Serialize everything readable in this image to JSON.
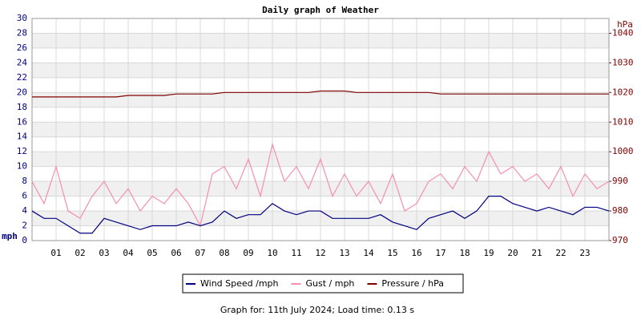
{
  "chart_data": {
    "type": "line",
    "title": "Daily graph of Weather",
    "ylabel": "mph",
    "y2label": "hPa",
    "footer": "Graph for: 11th July 2024; Load time: 0.13 s",
    "x": [
      0,
      0.5,
      1,
      1.5,
      2,
      2.5,
      3,
      3.5,
      4,
      4.5,
      5,
      5.5,
      6,
      6.5,
      7,
      7.5,
      8,
      8.5,
      9,
      9.5,
      10,
      10.5,
      11,
      11.5,
      12,
      12.5,
      13,
      13.5,
      14,
      14.5,
      15,
      15.5,
      16,
      16.5,
      17,
      17.5,
      18,
      18.5,
      19,
      19.5,
      20,
      20.5,
      21,
      21.5,
      22,
      22.5,
      23,
      23.5,
      24
    ],
    "xlim": [
      0,
      24
    ],
    "xticks": [
      {
        "value": 1,
        "label": "01"
      },
      {
        "value": 2,
        "label": "02"
      },
      {
        "value": 3,
        "label": "03"
      },
      {
        "value": 4,
        "label": "04"
      },
      {
        "value": 5,
        "label": "05"
      },
      {
        "value": 6,
        "label": "06"
      },
      {
        "value": 7,
        "label": "07"
      },
      {
        "value": 8,
        "label": "08"
      },
      {
        "value": 9,
        "label": "09"
      },
      10,
      11,
      12,
      13,
      14,
      15,
      16,
      17,
      18,
      19,
      20,
      21,
      22,
      23
    ],
    "ylim": [
      0,
      30
    ],
    "yticks": [
      0,
      2,
      4,
      6,
      8,
      10,
      12,
      14,
      16,
      18,
      20,
      22,
      24,
      26,
      28,
      30
    ],
    "y2lim": [
      970,
      1045
    ],
    "y2ticks": [
      970,
      980,
      990,
      1000,
      1010,
      1020,
      1030,
      1040
    ],
    "grid": true,
    "series": [
      {
        "name": "Wind Speed /mph",
        "color": "#000080",
        "values": [
          4,
          3,
          3,
          2,
          1,
          1,
          3,
          2.5,
          2,
          1.5,
          2,
          2,
          2,
          2.5,
          2,
          2.5,
          4,
          3,
          3.5,
          3.5,
          5,
          4,
          3.5,
          4,
          4,
          3,
          3,
          3,
          3,
          3.5,
          2.5,
          2,
          1.5,
          3,
          3.5,
          4,
          3,
          4,
          6,
          6,
          5,
          4.5,
          4,
          4.5,
          4,
          3.5,
          4.5,
          4.5,
          4
        ]
      },
      {
        "name": "Gust / mph",
        "color": "#f48fb1",
        "values": [
          8,
          5,
          10,
          4,
          3,
          6,
          8,
          5,
          7,
          4,
          6,
          5,
          7,
          5,
          2,
          9,
          10,
          7,
          11,
          6,
          13,
          8,
          10,
          7,
          11,
          6,
          9,
          6,
          8,
          5,
          9,
          4,
          5,
          8,
          9,
          7,
          10,
          8,
          12,
          9,
          10,
          8,
          9,
          7,
          10,
          6,
          9,
          7,
          8
        ]
      },
      {
        "name": "Pressure / hPa",
        "color": "#800000",
        "axis": "y2",
        "values": [
          1018.5,
          1018.5,
          1018.5,
          1018.5,
          1018.5,
          1018.5,
          1018.5,
          1018.5,
          1019,
          1019,
          1019,
          1019,
          1019.5,
          1019.5,
          1019.5,
          1019.5,
          1020,
          1020,
          1020,
          1020,
          1020,
          1020,
          1020,
          1020,
          1020.5,
          1020.5,
          1020.5,
          1020,
          1020,
          1020,
          1020,
          1020,
          1020,
          1020,
          1019.5,
          1019.5,
          1019.5,
          1019.5,
          1019.5,
          1019.5,
          1019.5,
          1019.5,
          1019.5,
          1019.5,
          1019.5,
          1019.5,
          1019.5,
          1019.5,
          1019.5
        ]
      }
    ]
  }
}
